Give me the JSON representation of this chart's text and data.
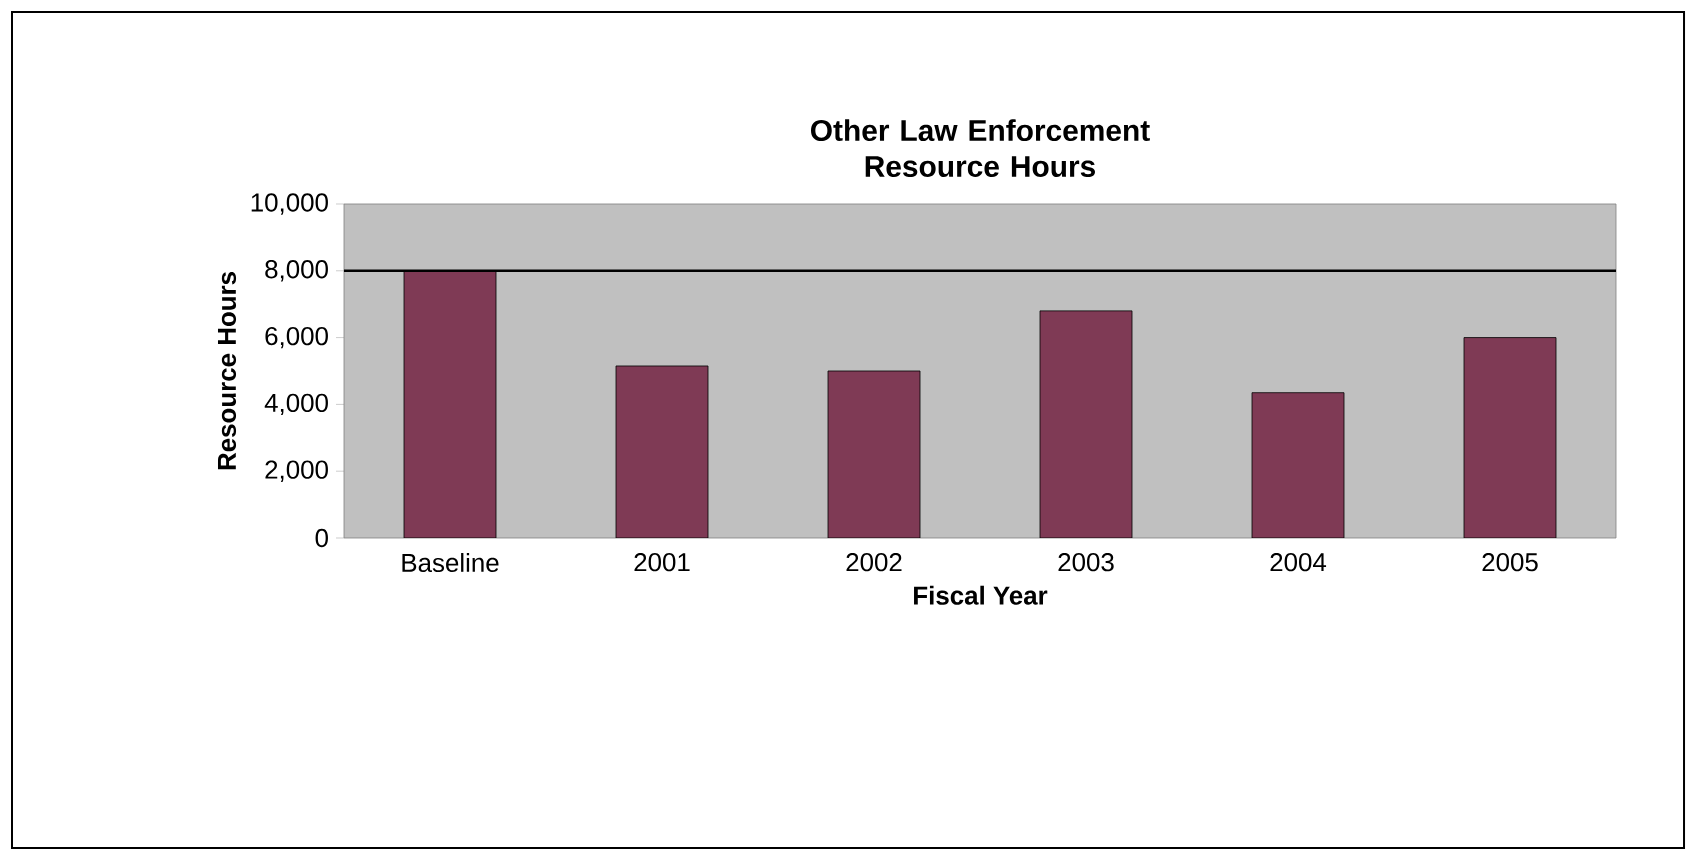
{
  "chart_data": {
    "type": "bar",
    "title": "Other Law Enforcement Resource Hours",
    "xlabel": "Fiscal Year",
    "ylabel": "Resource Hours",
    "categories": [
      "Baseline",
      "2001",
      "2002",
      "2003",
      "2004",
      "2005"
    ],
    "values": [
      8000,
      5150,
      5000,
      6800,
      4350,
      6000
    ],
    "color": "#7f3a55",
    "ylim": [
      0,
      10000
    ],
    "yticks": [
      {
        "value": 0,
        "label": "0"
      },
      {
        "value": 2000,
        "label": "2,000"
      },
      {
        "value": 4000,
        "label": "4,000"
      },
      {
        "value": 6000,
        "label": "6,000"
      },
      {
        "value": 8000,
        "label": "8,000"
      },
      {
        "value": 10000,
        "label": "10,000"
      }
    ],
    "ref_lines": [
      {
        "axis": "y",
        "value": 8000,
        "color": "#000000"
      }
    ]
  }
}
